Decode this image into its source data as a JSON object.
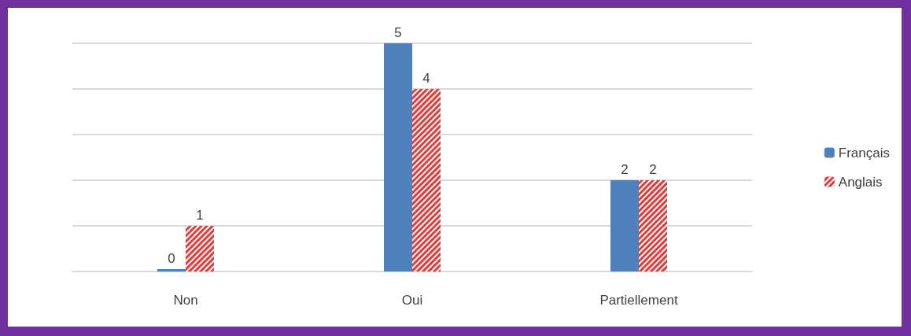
{
  "chart_data": {
    "type": "bar",
    "categories": [
      "Non",
      "Oui",
      "Partiellement"
    ],
    "series": [
      {
        "name": "Français",
        "color": "#4f81bd",
        "values": [
          0,
          5,
          2
        ]
      },
      {
        "name": "Anglais",
        "color": "#e03c3c",
        "values": [
          1,
          4,
          2
        ]
      }
    ],
    "ylim": [
      0,
      5
    ],
    "yticks": [
      {
        "value": 0,
        "label": null
      },
      {
        "value": 1,
        "label": null
      },
      {
        "value": 2,
        "label": null
      },
      {
        "value": 3,
        "label": null
      },
      {
        "value": 4,
        "label": null
      },
      {
        "value": 5,
        "label": null
      }
    ],
    "tick_labels": "x",
    "grid": "y",
    "data_labels": true,
    "legend": "right"
  }
}
